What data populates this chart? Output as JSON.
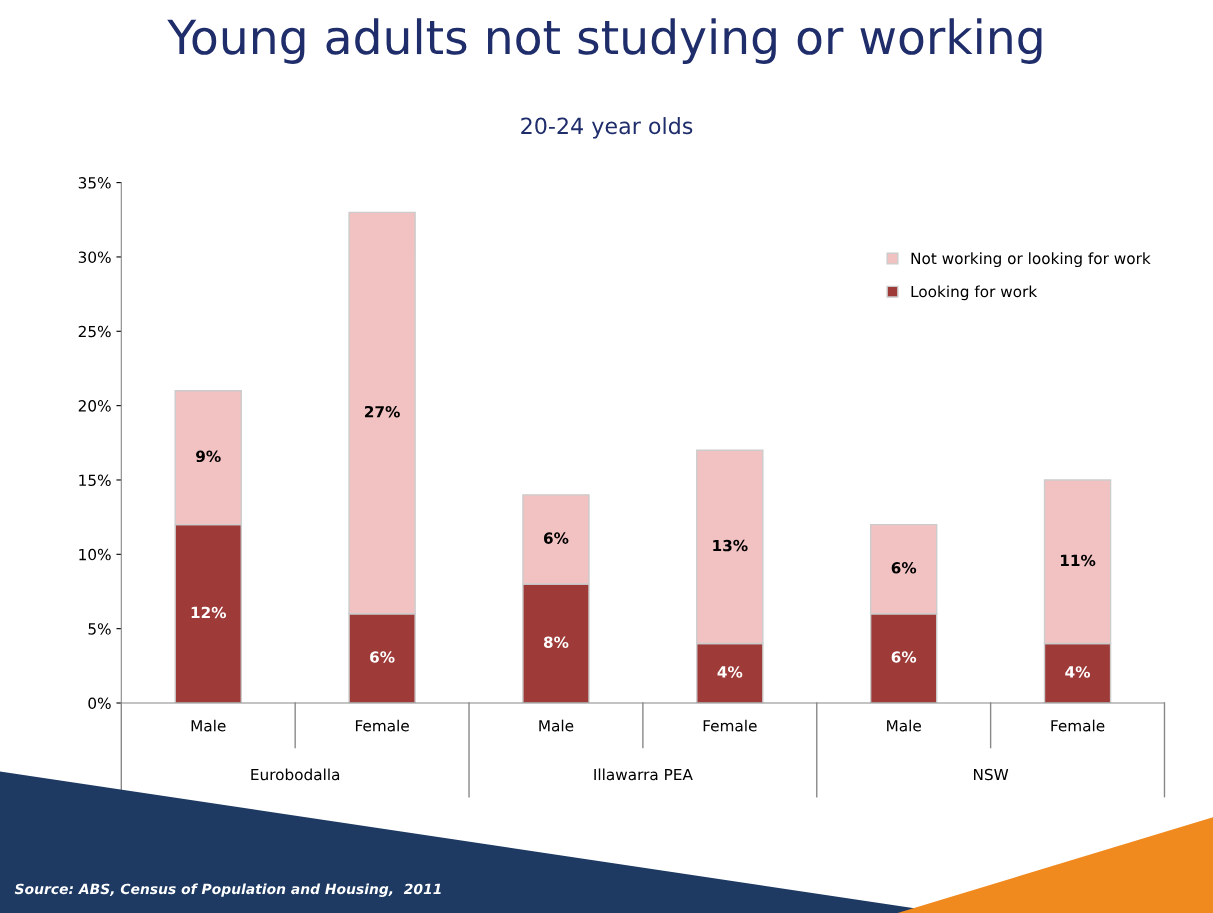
{
  "chart_data": {
    "type": "bar",
    "title": "Young adults not studying or working",
    "subtitle": "20-24 year olds",
    "categories": [
      "Male",
      "Female",
      "Male",
      "Female",
      "Male",
      "Female"
    ],
    "stacked": true,
    "series": [
      {
        "name": "Looking for work",
        "color": "#9e3b39",
        "values": [
          12,
          6,
          8,
          4,
          6,
          4
        ],
        "value_labels": [
          "12%",
          "6%",
          "8%",
          "4%",
          "6%",
          "4%"
        ]
      },
      {
        "name": "Not working or looking for work",
        "color": "#f2c2c2",
        "values": [
          9,
          27,
          6,
          13,
          6,
          11
        ],
        "value_labels": [
          "9%",
          "27%",
          "6%",
          "13%",
          "6%",
          "11%"
        ]
      }
    ],
    "ylim": [
      0,
      35
    ],
    "yticks": [
      {
        "value": 0,
        "label": "0%"
      },
      {
        "value": 5,
        "label": "5%"
      },
      {
        "value": 10,
        "label": "10%"
      },
      {
        "value": 15,
        "label": "15%"
      },
      {
        "value": 20,
        "label": "20%"
      },
      {
        "value": 25,
        "label": "25%"
      },
      {
        "value": 30,
        "label": "30%"
      },
      {
        "value": 35,
        "label": "35%"
      }
    ],
    "grid": false,
    "legend": "right",
    "annotations": [
      "Eurobodalla",
      "Illawarra PEA",
      "NSW",
      "Source: ABS, Census of Population and Housing,  2011"
    ]
  }
}
